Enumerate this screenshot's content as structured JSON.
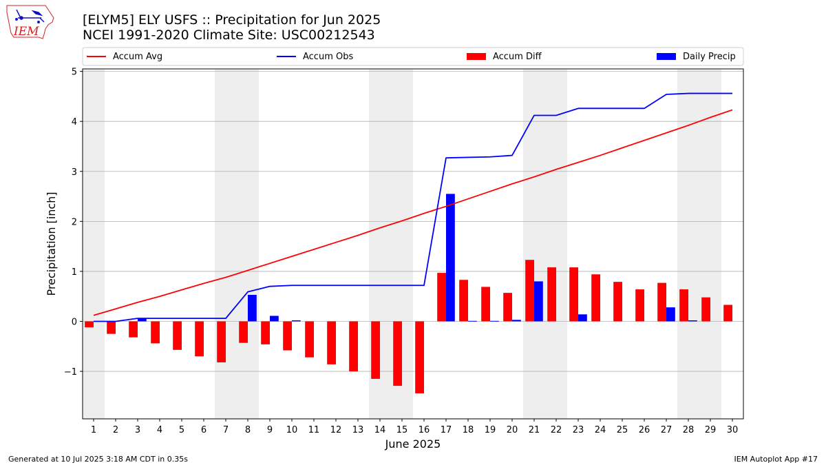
{
  "header": {
    "title_line1": "[ELYM5] ELY USFS :: Precipitation for Jun 2025",
    "title_line2": "NCEI 1991-2020 Climate Site: USC00212543"
  },
  "logo": {
    "text": "IEM"
  },
  "footer": {
    "left": "Generated at 10 Jul 2025 3:18 AM CDT in 0.35s",
    "right": "IEM Autoplot App #17"
  },
  "colors": {
    "accum_avg": "#ff0000",
    "accum_obs": "#0000ff",
    "accum_diff": "#ff0000",
    "daily_precip": "#0000ff",
    "weekend_shade": "#eeeeee",
    "grid": "#b0b0b0"
  },
  "chart_data": {
    "type": "bar",
    "xlabel": "June 2025",
    "ylabel": "Precipitation [inch]",
    "ylim": [
      -1.95,
      5.05
    ],
    "yticks": [
      -1,
      0,
      1,
      2,
      3,
      4,
      5
    ],
    "ytick_labels": [
      "−1",
      "0",
      "1",
      "2",
      "3",
      "4",
      "5"
    ],
    "xlim": [
      0.5,
      30.5
    ],
    "days": [
      1,
      2,
      3,
      4,
      5,
      6,
      7,
      8,
      9,
      10,
      11,
      12,
      13,
      14,
      15,
      16,
      17,
      18,
      19,
      20,
      21,
      22,
      23,
      24,
      25,
      26,
      27,
      28,
      29,
      30
    ],
    "weekend_spans": [
      [
        0.5,
        1.5
      ],
      [
        6.5,
        8.5
      ],
      [
        13.5,
        15.5
      ],
      [
        20.5,
        22.5
      ],
      [
        27.5,
        29.5
      ]
    ],
    "grid": "horizontal",
    "legend": {
      "placement": "top, above plot",
      "entries": [
        "Accum Avg",
        "Accum Obs",
        "Accum Diff",
        "Daily Precip"
      ]
    },
    "series": [
      {
        "name": "Accum Avg",
        "kind": "line",
        "values": [
          0.12,
          0.25,
          0.38,
          0.5,
          0.63,
          0.76,
          0.88,
          1.02,
          1.16,
          1.3,
          1.44,
          1.58,
          1.72,
          1.87,
          2.01,
          2.16,
          2.3,
          2.45,
          2.6,
          2.75,
          2.89,
          3.04,
          3.18,
          3.32,
          3.47,
          3.62,
          3.77,
          3.92,
          4.08,
          4.23
        ]
      },
      {
        "name": "Accum Obs",
        "kind": "line",
        "values": [
          0.0,
          0.0,
          0.06,
          0.06,
          0.06,
          0.06,
          0.06,
          0.59,
          0.7,
          0.72,
          0.72,
          0.72,
          0.72,
          0.72,
          0.72,
          0.72,
          3.27,
          3.28,
          3.29,
          3.32,
          4.12,
          4.12,
          4.26,
          4.26,
          4.26,
          4.26,
          4.54,
          4.56,
          4.56,
          4.56
        ]
      },
      {
        "name": "Accum Diff",
        "kind": "bar",
        "values": [
          -0.12,
          -0.25,
          -0.32,
          -0.44,
          -0.57,
          -0.7,
          -0.82,
          -0.43,
          -0.46,
          -0.58,
          -0.72,
          -0.86,
          -1.0,
          -1.15,
          -1.29,
          -1.44,
          0.97,
          0.83,
          0.69,
          0.57,
          1.23,
          1.08,
          1.08,
          0.94,
          0.79,
          0.64,
          0.77,
          0.64,
          0.48,
          0.33
        ]
      },
      {
        "name": "Daily Precip",
        "kind": "bar",
        "values": [
          0.0,
          0.0,
          0.06,
          0.0,
          0.0,
          0.0,
          0.0,
          0.53,
          0.11,
          0.02,
          0.0,
          0.0,
          0.0,
          0.0,
          0.0,
          0.0,
          2.55,
          0.01,
          0.01,
          0.03,
          0.8,
          0.0,
          0.14,
          0.0,
          0.0,
          0.0,
          0.28,
          0.02,
          0.0,
          0.0
        ]
      }
    ]
  }
}
